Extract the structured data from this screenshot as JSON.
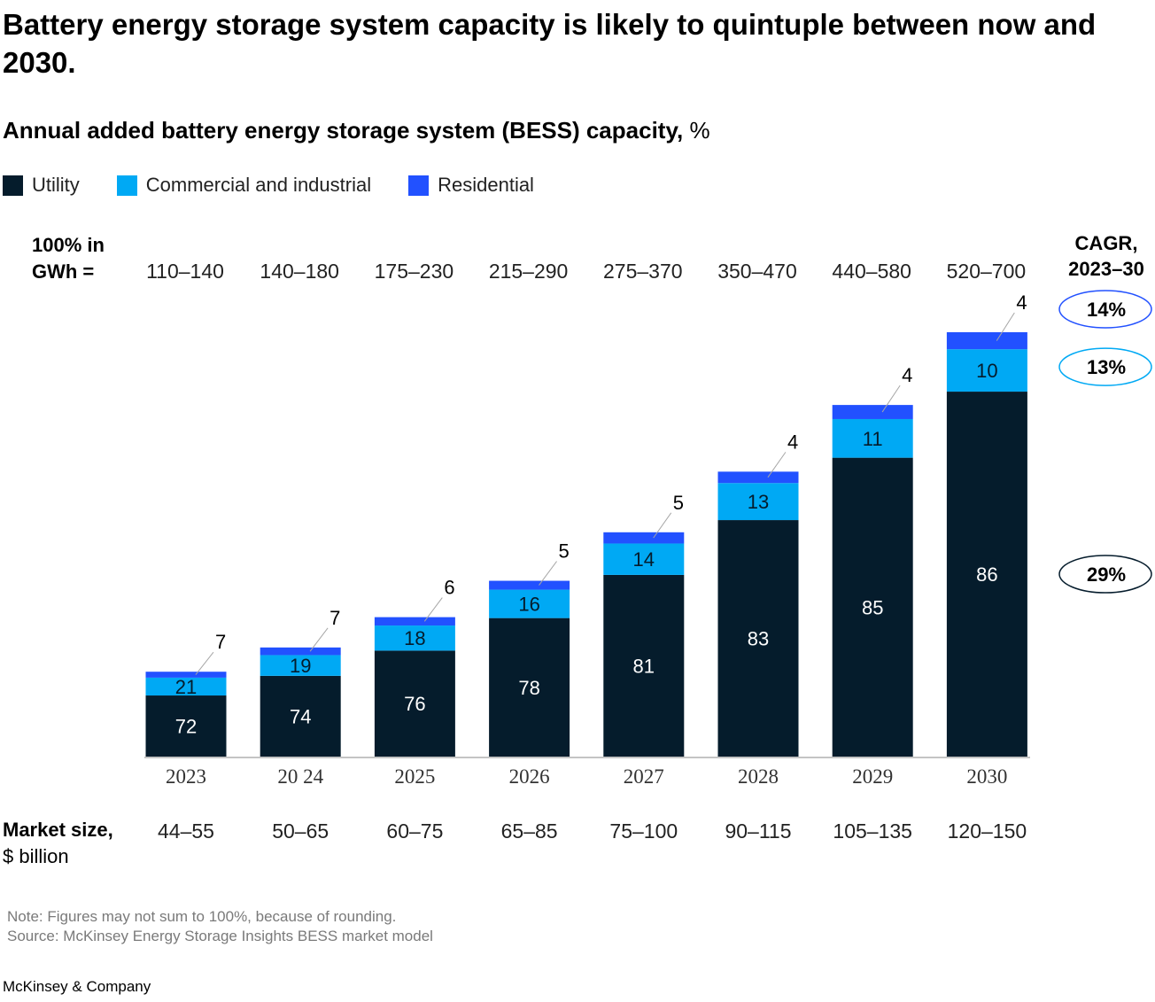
{
  "title": "Battery energy storage system capacity is likely to quintuple between now and 2030.",
  "subtitle": {
    "main": "Annual added battery energy storage system (BESS) capacity,",
    "unit": "%"
  },
  "legend": [
    {
      "label": "Utility",
      "color": "#051c2c"
    },
    {
      "label": "Commercial and industrial",
      "color": "#00a9f4"
    },
    {
      "label": "Residential",
      "color": "#2251ff"
    }
  ],
  "gwh_header": {
    "line1": "100% in",
    "line2": "GWh ="
  },
  "market_header": {
    "line1": "Market size,",
    "line2": "$ billion"
  },
  "cagr_header": {
    "line1": "CAGR,",
    "line2": "2023–30"
  },
  "footer": {
    "note": "Note: Figures may not sum to 100%, because of rounding.",
    "source": "Source: McKinsey Energy Storage Insights BESS market model",
    "brand": "McKinsey & Company"
  },
  "chart_data": {
    "type": "bar",
    "stacked": true,
    "categories": [
      "2023",
      "20 24",
      "2025",
      "2026",
      "2027",
      "2028",
      "2029",
      "2030"
    ],
    "series": [
      {
        "name": "Utility",
        "values": [
          72,
          74,
          76,
          78,
          81,
          83,
          85,
          86
        ],
        "color": "#051c2c",
        "label_color": "#ffffff"
      },
      {
        "name": "Commercial and industrial",
        "values": [
          21,
          19,
          18,
          16,
          14,
          13,
          11,
          10
        ],
        "color": "#00a9f4",
        "label_color": "#051c2c"
      },
      {
        "name": "Residential",
        "values": [
          7,
          7,
          6,
          5,
          5,
          4,
          4,
          4
        ],
        "color": "#2251ff",
        "label_color": "#000000"
      }
    ],
    "total_gwh": [
      "110–140",
      "140–180",
      "175–230",
      "215–290",
      "275–370",
      "350–470",
      "440–580",
      "520–700"
    ],
    "total_gwh_upper": [
      140,
      180,
      230,
      290,
      370,
      470,
      580,
      700
    ],
    "market_size_billion_usd": [
      "44–55",
      "50–65",
      "60–75",
      "65–85",
      "75–100",
      "90–115",
      "105–135",
      "120–150"
    ],
    "cagr": [
      {
        "series": "Residential",
        "label": "14%",
        "border": "#2251ff"
      },
      {
        "series": "Commercial and industrial",
        "label": "13%",
        "border": "#00a9f4"
      },
      {
        "series": "Utility",
        "label": "29%",
        "border": "#051c2c"
      }
    ]
  }
}
